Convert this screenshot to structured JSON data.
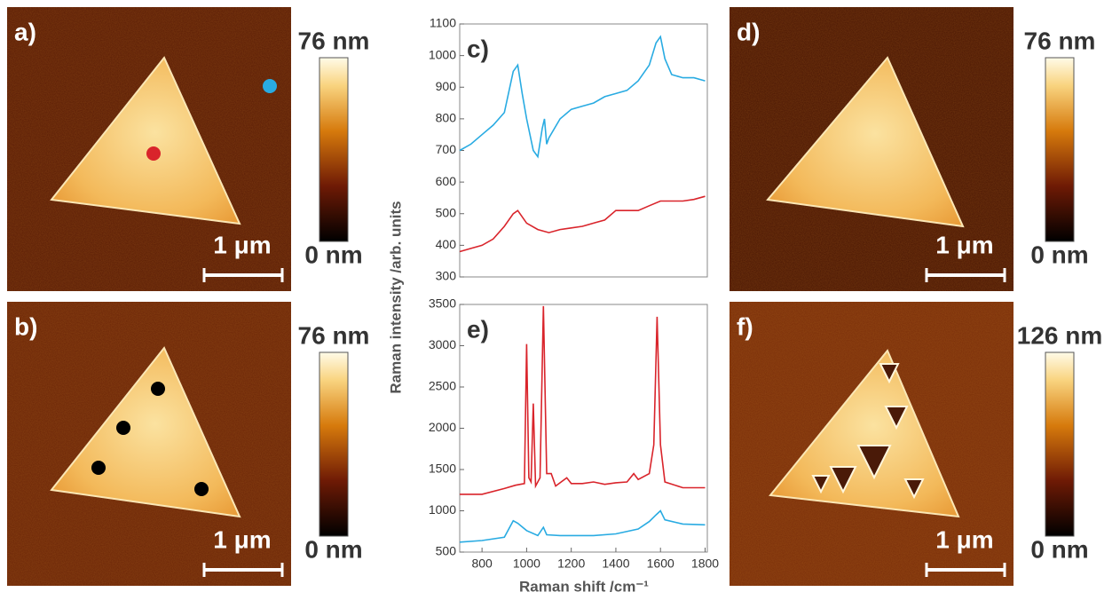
{
  "panels": [
    {
      "label": "a)",
      "scale_bar": "1 μm",
      "colorbar_max": "76 nm",
      "colorbar_min": "0 nm"
    },
    {
      "label": "b)",
      "scale_bar": "1 μm",
      "colorbar_max": "76 nm",
      "colorbar_min": "0 nm"
    },
    {
      "label": "d)",
      "scale_bar": "1 μm",
      "colorbar_max": "76 nm",
      "colorbar_min": "0 nm"
    },
    {
      "label": "f)",
      "scale_bar": "1 μm",
      "colorbar_max": "126 nm",
      "colorbar_min": "0 nm"
    }
  ],
  "chart_data": [
    {
      "type": "line",
      "label": "c)",
      "ylabel": "Raman intensity /arb. units",
      "xlim": [
        700,
        1810
      ],
      "ylim": [
        300,
        1100
      ],
      "yticks": [
        300,
        400,
        500,
        600,
        700,
        800,
        900,
        1000,
        1100
      ],
      "series": [
        {
          "color": "#29abe2",
          "x": [
            700,
            750,
            800,
            850,
            900,
            940,
            960,
            980,
            1000,
            1030,
            1050,
            1070,
            1080,
            1090,
            1100,
            1150,
            1200,
            1250,
            1300,
            1350,
            1400,
            1450,
            1500,
            1550,
            1580,
            1600,
            1620,
            1650,
            1700,
            1750,
            1800
          ],
          "values": [
            700,
            720,
            750,
            780,
            820,
            950,
            970,
            880,
            800,
            700,
            680,
            770,
            800,
            720,
            740,
            800,
            830,
            840,
            850,
            870,
            880,
            890,
            920,
            970,
            1040,
            1060,
            990,
            940,
            930,
            930,
            920
          ]
        },
        {
          "color": "#d9242b",
          "x": [
            700,
            750,
            800,
            850,
            900,
            940,
            960,
            1000,
            1050,
            1100,
            1150,
            1200,
            1250,
            1300,
            1350,
            1400,
            1450,
            1500,
            1550,
            1600,
            1650,
            1700,
            1750,
            1800
          ],
          "values": [
            380,
            390,
            400,
            420,
            460,
            500,
            510,
            470,
            450,
            440,
            450,
            455,
            460,
            470,
            480,
            510,
            510,
            510,
            525,
            540,
            540,
            540,
            545,
            555
          ]
        }
      ]
    },
    {
      "type": "line",
      "label": "e)",
      "xlabel": "Raman shift /cm⁻¹",
      "xlim": [
        700,
        1810
      ],
      "xticks": [
        800,
        1000,
        1200,
        1400,
        1600,
        1800
      ],
      "ylim": [
        500,
        3500
      ],
      "yticks": [
        500,
        1000,
        1500,
        2000,
        2500,
        3000,
        3500
      ],
      "series": [
        {
          "color": "#d9242b",
          "x": [
            700,
            800,
            900,
            950,
            990,
            1000,
            1010,
            1020,
            1030,
            1040,
            1060,
            1075,
            1090,
            1110,
            1130,
            1180,
            1200,
            1250,
            1300,
            1350,
            1400,
            1450,
            1480,
            1500,
            1550,
            1570,
            1585,
            1600,
            1620,
            1700,
            1800
          ],
          "values": [
            1200,
            1200,
            1270,
            1310,
            1330,
            3020,
            1400,
            1350,
            2300,
            1300,
            1400,
            3480,
            1450,
            1450,
            1300,
            1400,
            1330,
            1330,
            1350,
            1320,
            1340,
            1350,
            1450,
            1380,
            1450,
            1800,
            3350,
            1800,
            1350,
            1280,
            1280
          ]
        },
        {
          "color": "#29abe2",
          "x": [
            700,
            800,
            900,
            940,
            960,
            1000,
            1050,
            1075,
            1090,
            1150,
            1200,
            1300,
            1400,
            1500,
            1550,
            1580,
            1600,
            1620,
            1700,
            1800
          ],
          "values": [
            620,
            640,
            680,
            880,
            850,
            760,
            700,
            800,
            710,
            700,
            700,
            700,
            720,
            780,
            870,
            950,
            1000,
            890,
            840,
            830
          ]
        }
      ]
    }
  ]
}
